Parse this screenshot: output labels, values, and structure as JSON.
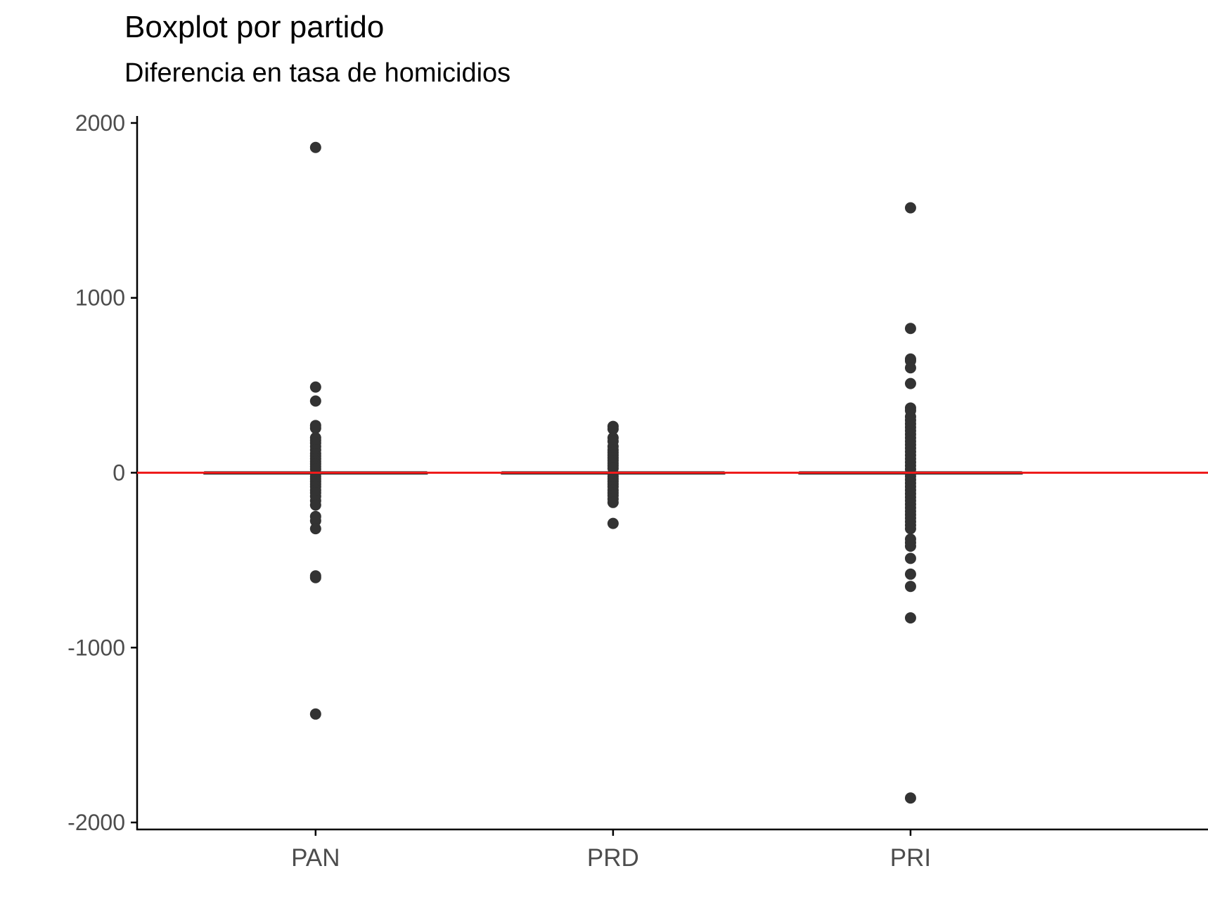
{
  "chart_data": {
    "type": "boxplot",
    "title": "Boxplot por partido",
    "subtitle": "Diferencia en tasa de homicidios",
    "xlabel": "",
    "ylabel": "",
    "ylim": [
      -2040,
      2040
    ],
    "y_ticks": [
      2000,
      1000,
      0,
      -1000,
      -2000
    ],
    "y_tick_labels": [
      "2000",
      "1000",
      "0",
      "-1000",
      "-2000"
    ],
    "categories": [
      "PAN",
      "PRD",
      "PRI"
    ],
    "reference_line": {
      "y": 0,
      "color": "#ee1c1c"
    },
    "boxes": [
      {
        "name": "PAN",
        "q1": -2,
        "median": 0,
        "q3": 2
      },
      {
        "name": "PRD",
        "q1": -2,
        "median": 0,
        "q3": 2
      },
      {
        "name": "PRI",
        "q1": -2,
        "median": 0,
        "q3": 2
      }
    ],
    "outliers": [
      {
        "category": "PAN",
        "values": [
          1860,
          490,
          410,
          270,
          255,
          200,
          185,
          170,
          150,
          130,
          110,
          95,
          80,
          65,
          50,
          35,
          20,
          -20,
          -35,
          -50,
          -65,
          -80,
          -100,
          -115,
          -135,
          -160,
          -185,
          -250,
          -275,
          -320,
          -590,
          -600,
          -1380
        ]
      },
      {
        "category": "PRD",
        "values": [
          265,
          250,
          200,
          180,
          150,
          130,
          115,
          100,
          85,
          70,
          55,
          40,
          25,
          -20,
          -35,
          -50,
          -65,
          -80,
          -100,
          -115,
          -130,
          -150,
          -170,
          -290
        ]
      },
      {
        "category": "PRI",
        "values": [
          1515,
          825,
          650,
          640,
          600,
          510,
          370,
          355,
          320,
          300,
          280,
          260,
          240,
          220,
          200,
          180,
          160,
          140,
          120,
          100,
          80,
          60,
          40,
          20,
          -20,
          -40,
          -60,
          -80,
          -100,
          -120,
          -140,
          -160,
          -180,
          -200,
          -220,
          -240,
          -260,
          -280,
          -300,
          -320,
          -380,
          -400,
          -420,
          -490,
          -580,
          -650,
          -830,
          -1860
        ]
      }
    ],
    "colors": {
      "point": "#333333",
      "median": "#000000",
      "axis": "#000000",
      "tick_label": "#4d4d4d",
      "reference": "#ee1c1c"
    },
    "grid": false,
    "legend": "none"
  }
}
